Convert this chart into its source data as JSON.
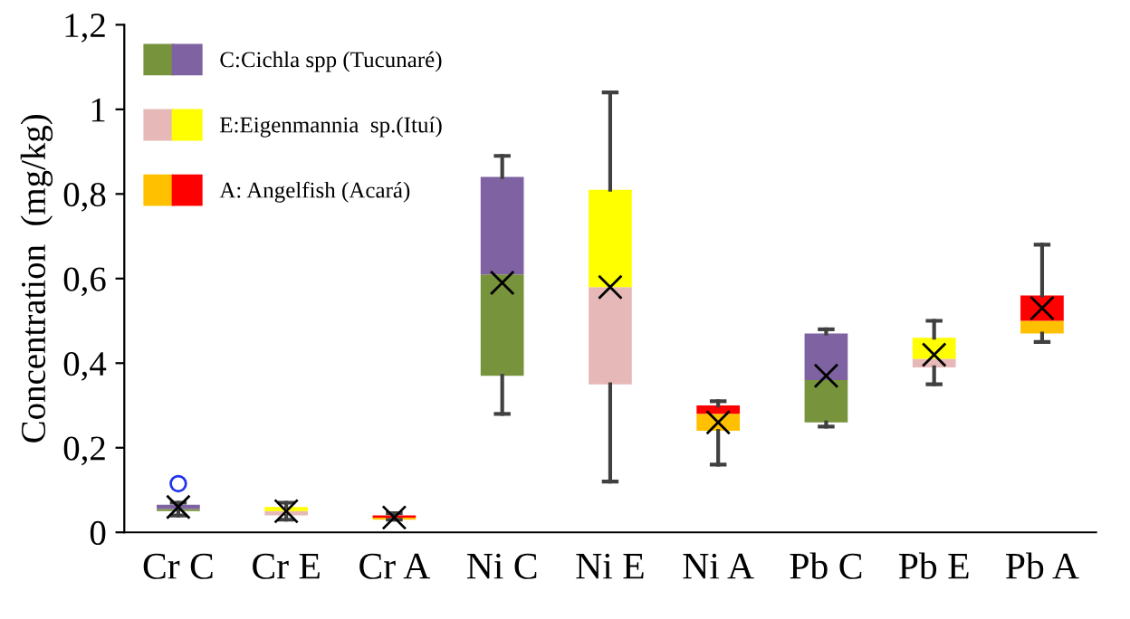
{
  "chart_data": {
    "type": "box",
    "ylabel": "Concentration  (mg/kg)",
    "categories": [
      "Cr C",
      "Cr E",
      "Cr A",
      "Ni C",
      "Ni E",
      "Ni A",
      "Pb C",
      "Pb E",
      "Pb A"
    ],
    "ylim": [
      0,
      1.2
    ],
    "yticks": [
      0,
      {
        "value": 0.2,
        "label": "0,2"
      },
      {
        "value": 0.4,
        "label": "0,4"
      },
      {
        "value": 0.6,
        "label": "0,6"
      },
      {
        "value": 0.8,
        "label": "0,8"
      },
      1,
      {
        "value": 1.2,
        "label": "1,2"
      }
    ],
    "marker": "cross",
    "grid": false,
    "legend": "top left",
    "series": [
      {
        "name": "C:Cichla spp (Tucunaré)",
        "color": "#7f62a1",
        "colors": [
          "#77933c",
          "#77933c",
          "#77933c",
          "#77933c",
          "#77933c",
          "#77933c",
          "#77933c",
          "#77933c",
          "#77933c"
        ],
        "boxes": [
          {
            "low": 0.04,
            "q1": 0.05,
            "median": 0.055,
            "q3": 0.065,
            "high": 0.07,
            "mean": 0.06,
            "outliers": [
              0.115
            ]
          },
          null,
          null,
          {
            "low": 0.28,
            "q1": 0.37,
            "median": 0.61,
            "q3": 0.84,
            "high": 0.89,
            "mean": 0.59
          },
          null,
          null,
          {
            "low": 0.25,
            "q1": 0.26,
            "median": 0.36,
            "q3": 0.47,
            "high": 0.48,
            "mean": 0.37
          },
          null,
          null
        ]
      },
      {
        "name": "E:Eigenmannia  sp.(Ituí)",
        "color": "#ffff00",
        "colors": [
          "#e6b9b8",
          "#e6b9b8",
          "#e6b9b8",
          "#e6b9b8",
          "#e6b9b8",
          "#e6b9b8",
          "#e6b9b8",
          "#e6b9b8",
          "#e6b9b8"
        ],
        "boxes": [
          null,
          {
            "low": 0.03,
            "q1": 0.04,
            "median": 0.05,
            "q3": 0.06,
            "high": 0.07,
            "mean": 0.05
          },
          null,
          null,
          {
            "low": 0.12,
            "q1": 0.35,
            "median": 0.58,
            "q3": 0.81,
            "high": 1.04,
            "mean": 0.58
          },
          null,
          null,
          {
            "low": 0.35,
            "q1": 0.39,
            "median": 0.41,
            "q3": 0.46,
            "high": 0.5,
            "mean": 0.42
          },
          null
        ]
      },
      {
        "name": "A: Angelfish (Acará)",
        "color": "#ff0000",
        "colors": [
          "#ffc000",
          "#ffc000",
          "#ffc000",
          "#ffc000",
          "#ffc000",
          "#ffc000",
          "#ffc000",
          "#ffc000",
          "#ffc000"
        ],
        "boxes": [
          null,
          null,
          {
            "low": 0.03,
            "q1": 0.03,
            "median": 0.035,
            "q3": 0.04,
            "high": 0.045,
            "mean": 0.035
          },
          null,
          null,
          {
            "low": 0.16,
            "q1": 0.24,
            "median": 0.28,
            "q3": 0.3,
            "high": 0.31,
            "mean": 0.26
          },
          null,
          null,
          {
            "low": 0.45,
            "q1": 0.47,
            "median": 0.5,
            "q3": 0.56,
            "high": 0.68,
            "mean": 0.53
          }
        ]
      }
    ]
  }
}
